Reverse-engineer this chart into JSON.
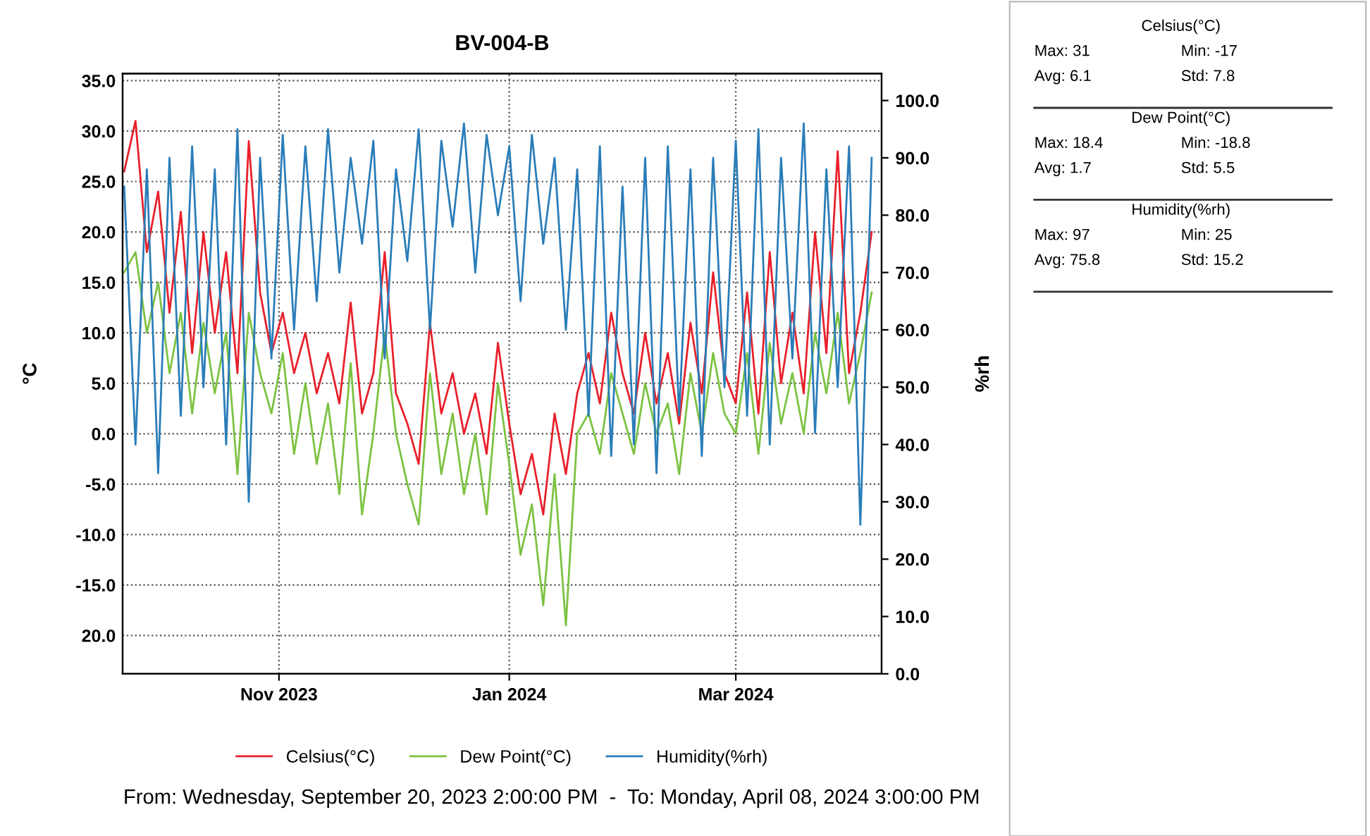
{
  "chart_data": {
    "type": "line",
    "title": "BV-004-B",
    "ylabel": "°C",
    "y2label": "%rh",
    "x": [
      "2023-09-21",
      "2023-09-24",
      "2023-09-27",
      "2023-09-30",
      "2023-10-03",
      "2023-10-06",
      "2023-10-09",
      "2023-10-12",
      "2023-10-15",
      "2023-10-18",
      "2023-10-21",
      "2023-10-24",
      "2023-10-27",
      "2023-10-30",
      "2023-11-02",
      "2023-11-05",
      "2023-11-08",
      "2023-11-11",
      "2023-11-14",
      "2023-11-17",
      "2023-11-20",
      "2023-11-23",
      "2023-11-26",
      "2023-11-29",
      "2023-12-02",
      "2023-12-05",
      "2023-12-08",
      "2023-12-11",
      "2023-12-14",
      "2023-12-17",
      "2023-12-20",
      "2023-12-23",
      "2023-12-26",
      "2023-12-29",
      "2024-01-01",
      "2024-01-04",
      "2024-01-07",
      "2024-01-10",
      "2024-01-13",
      "2024-01-16",
      "2024-01-19",
      "2024-01-22",
      "2024-01-25",
      "2024-01-28",
      "2024-01-31",
      "2024-02-03",
      "2024-02-06",
      "2024-02-09",
      "2024-02-12",
      "2024-02-15",
      "2024-02-18",
      "2024-02-21",
      "2024-02-24",
      "2024-02-27",
      "2024-03-01",
      "2024-03-04",
      "2024-03-07",
      "2024-03-10",
      "2024-03-13",
      "2024-03-16",
      "2024-03-19",
      "2024-03-22",
      "2024-03-25",
      "2024-03-28",
      "2024-03-31",
      "2024-04-03",
      "2024-04-06"
    ],
    "series": [
      {
        "name": "Celsius(°C)",
        "color": "#e8202a",
        "values": [
          26,
          31,
          18,
          24,
          12,
          22,
          8,
          20,
          10,
          18,
          6,
          29,
          14,
          8,
          12,
          6,
          10,
          4,
          8,
          3,
          13,
          2,
          6,
          18,
          4,
          1,
          -3,
          11,
          2,
          6,
          0,
          4,
          -2,
          9,
          1,
          -6,
          -2,
          -8,
          2,
          -4,
          4,
          8,
          3,
          12,
          6,
          2,
          10,
          3,
          8,
          1,
          11,
          4,
          16,
          6,
          3,
          14,
          2,
          18,
          5,
          12,
          4,
          20,
          8,
          28,
          6,
          12,
          20
        ]
      },
      {
        "name": "Dew Point(°C)",
        "color": "#7cc242",
        "values": [
          16,
          18,
          10,
          15,
          6,
          12,
          2,
          11,
          4,
          10,
          -4,
          12,
          6,
          2,
          8,
          -2,
          5,
          -3,
          3,
          -6,
          7,
          -8,
          0,
          10,
          0,
          -5,
          -9,
          6,
          -4,
          2,
          -6,
          0,
          -8,
          5,
          -3,
          -12,
          -7,
          -17,
          -4,
          -19,
          0,
          2,
          -2,
          6,
          2,
          -2,
          5,
          0,
          3,
          -4,
          6,
          0,
          8,
          2,
          0,
          8,
          -2,
          9,
          1,
          6,
          0,
          10,
          4,
          12,
          3,
          8,
          14
        ]
      },
      {
        "name": "Humidity(%rh)",
        "color": "#2a7db8",
        "axis": "y2",
        "values": [
          85,
          40,
          88,
          35,
          90,
          45,
          92,
          50,
          88,
          40,
          95,
          30,
          90,
          55,
          94,
          60,
          92,
          65,
          95,
          70,
          90,
          75,
          93,
          55,
          88,
          72,
          95,
          60,
          93,
          78,
          96,
          70,
          94,
          80,
          92,
          65,
          94,
          75,
          90,
          60,
          88,
          45,
          92,
          38,
          85,
          40,
          90,
          35,
          92,
          45,
          88,
          38,
          90,
          50,
          93,
          45,
          95,
          40,
          90,
          55,
          96,
          42,
          88,
          50,
          92,
          26,
          90
        ]
      }
    ],
    "xlim": [
      "2023-09-20T14:00",
      "2024-04-08T15:00"
    ],
    "xticks": [
      {
        "value": "2023-11-01",
        "label": "Nov 2023"
      },
      {
        "value": "2024-01-01",
        "label": "Jan 2024"
      },
      {
        "value": "2024-03-01",
        "label": "Mar 2024"
      }
    ],
    "ylim": [
      -23.8,
      35.7
    ],
    "yticks": [
      {
        "value": 35,
        "label": "35.0"
      },
      {
        "value": 30,
        "label": "30.0"
      },
      {
        "value": 25,
        "label": "25.0"
      },
      {
        "value": 20,
        "label": "20.0"
      },
      {
        "value": 15,
        "label": "15.0"
      },
      {
        "value": 10,
        "label": "10.0"
      },
      {
        "value": 5,
        "label": "5.0"
      },
      {
        "value": 0,
        "label": "0.0"
      },
      {
        "value": -5,
        "label": "-5.0"
      },
      {
        "value": -10,
        "label": "-10.0"
      },
      {
        "value": -15,
        "label": "-15.0"
      },
      {
        "value": -20,
        "label": "20.0"
      }
    ],
    "y2lim": [
      0,
      104.7
    ],
    "y2ticks": [
      {
        "value": 0,
        "label": "0.0"
      },
      {
        "value": 10,
        "label": "10.0"
      },
      {
        "value": 20,
        "label": "20.0"
      },
      {
        "value": 30,
        "label": "30.0"
      },
      {
        "value": 40,
        "label": "40.0"
      },
      {
        "value": 50,
        "label": "50.0"
      },
      {
        "value": 60,
        "label": "60.0"
      },
      {
        "value": 70,
        "label": "70.0"
      },
      {
        "value": 80,
        "label": "80.0"
      },
      {
        "value": 90,
        "label": "90.0"
      },
      {
        "value": 100,
        "label": "100.0"
      }
    ],
    "grid": true,
    "legend": "bottom",
    "line_style": "solid",
    "annotations": [
      "From: Wednesday, September 20, 2023 2:00:00 PM  -  To: Monday, April 08, 2024 3:00:00 PM",
      "Celsius(°C)",
      "Max: 31",
      "Min: -17",
      "Avg: 6.1",
      "Std: 7.8",
      "Dew Point(°C)",
      "Max: 18.4",
      "Min: -18.8",
      "Avg: 1.7",
      "Std: 5.5",
      "Humidity(%rh)",
      "Max: 97",
      "Min: 25",
      "Avg: 75.8",
      "Std: 15.2"
    ]
  }
}
